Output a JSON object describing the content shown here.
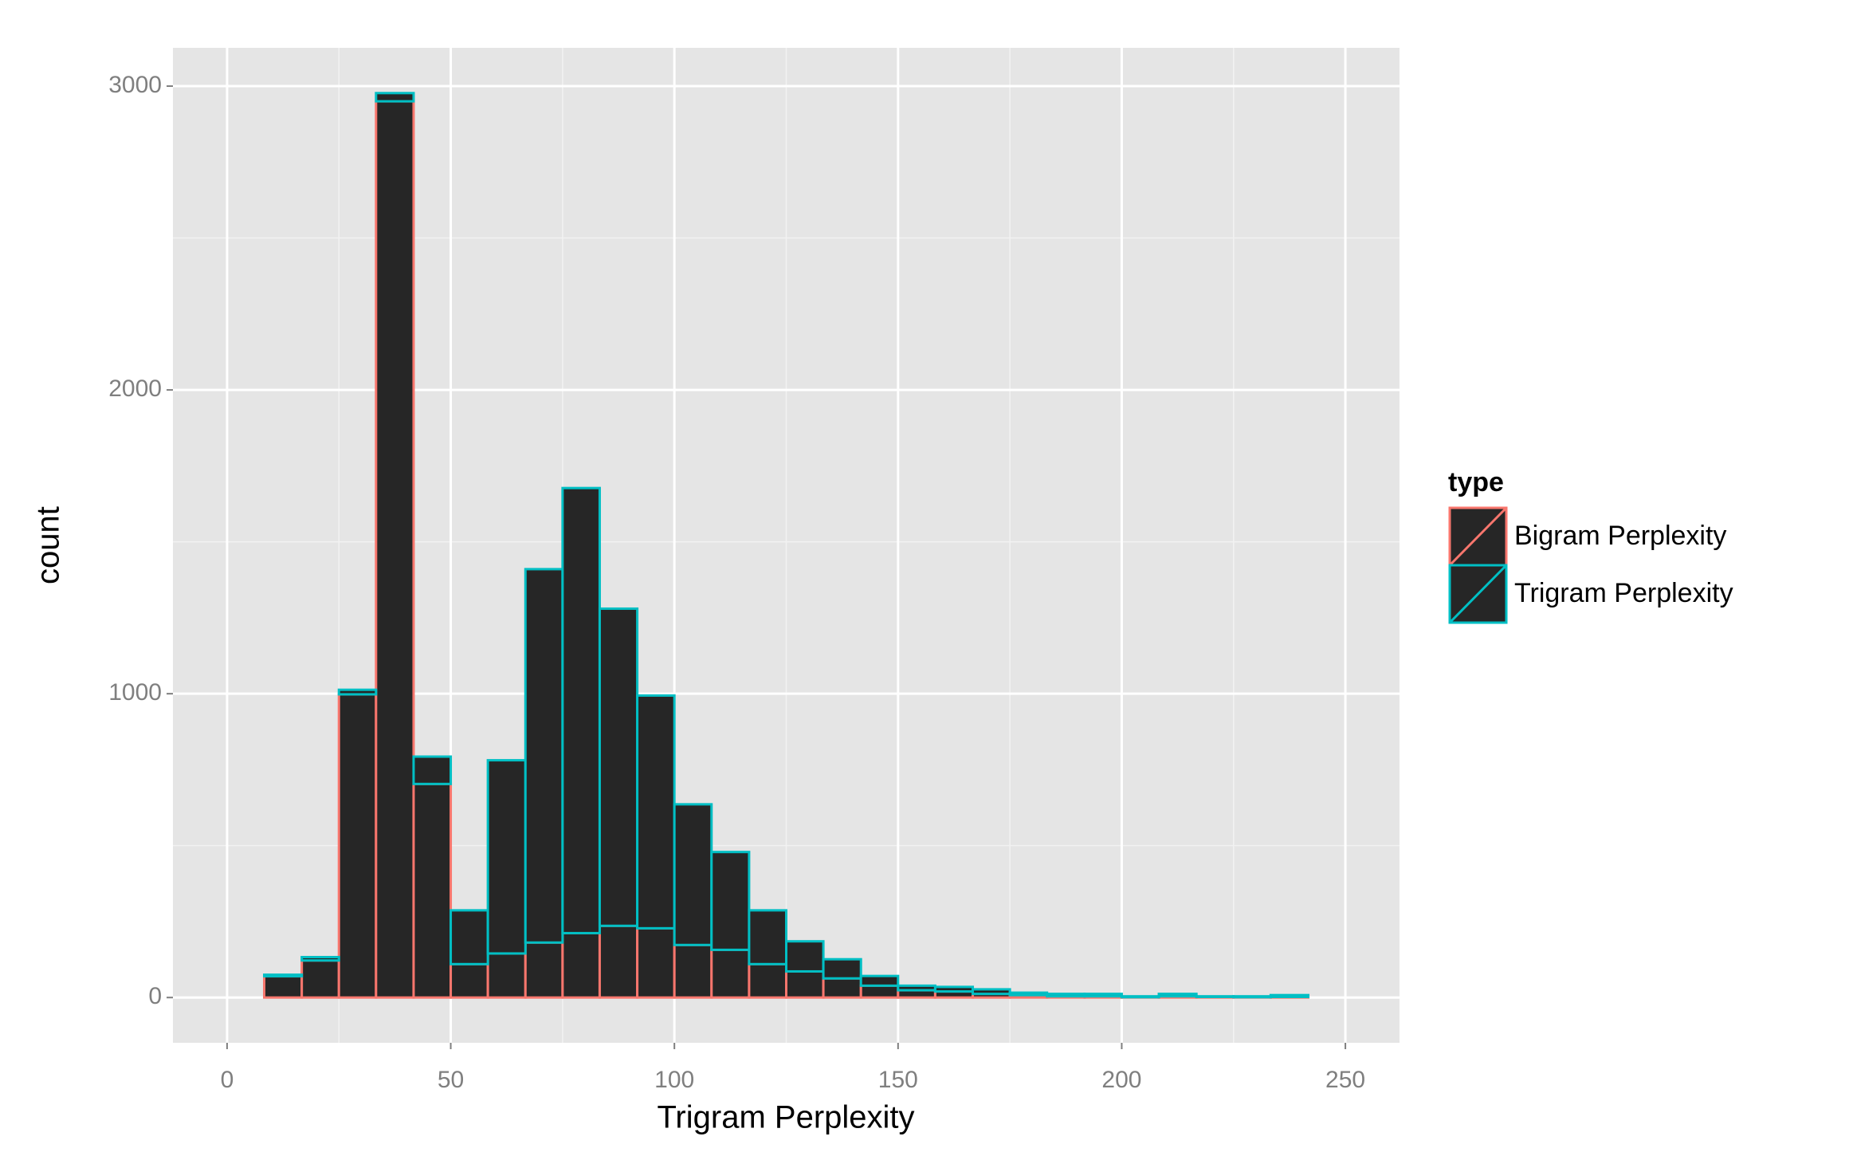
{
  "chart_data": {
    "type": "histogram",
    "x_label": "Trigram Perplexity",
    "y_label": "count",
    "bins": [
      0,
      8.3,
      16.7,
      25,
      33.3,
      41.7,
      50,
      58.3,
      66.7,
      75,
      83.3,
      91.7,
      100,
      108.3,
      116.7,
      125,
      133.3,
      141.7,
      150,
      158.3,
      166.7,
      175,
      183.3,
      191.7,
      200,
      208.3,
      216.7,
      225,
      233.3,
      241.7
    ],
    "series": [
      {
        "name": "Bigram Perplexity",
        "color": "#F8766D",
        "values": [
          0,
          70,
          122,
          998,
          2950,
          703,
          110,
          145,
          181,
          212,
          236,
          228,
          173,
          157,
          110,
          86,
          63,
          39,
          24,
          20,
          12,
          8,
          4,
          4,
          1,
          4,
          2,
          1,
          2
        ]
      },
      {
        "name": "Trigram Perplexity",
        "color": "#00BFC4",
        "values": [
          0,
          5,
          11,
          15,
          27,
          90,
          177,
          636,
          1229,
          1465,
          1044,
          766,
          463,
          322,
          177,
          99,
          63,
          32,
          15,
          15,
          15,
          8,
          8,
          8,
          3,
          8,
          2,
          3,
          6
        ]
      }
    ],
    "stacked": true,
    "fill": "#262626",
    "legend_title": "type",
    "legend_position": "right",
    "xlim": [
      -12.1,
      262.1
    ],
    "ylim": [
      -149,
      3126
    ],
    "xticks": [
      0,
      50,
      100,
      150,
      200,
      250
    ],
    "yticks": [
      0,
      1000,
      2000,
      3000
    ],
    "grid": true
  }
}
